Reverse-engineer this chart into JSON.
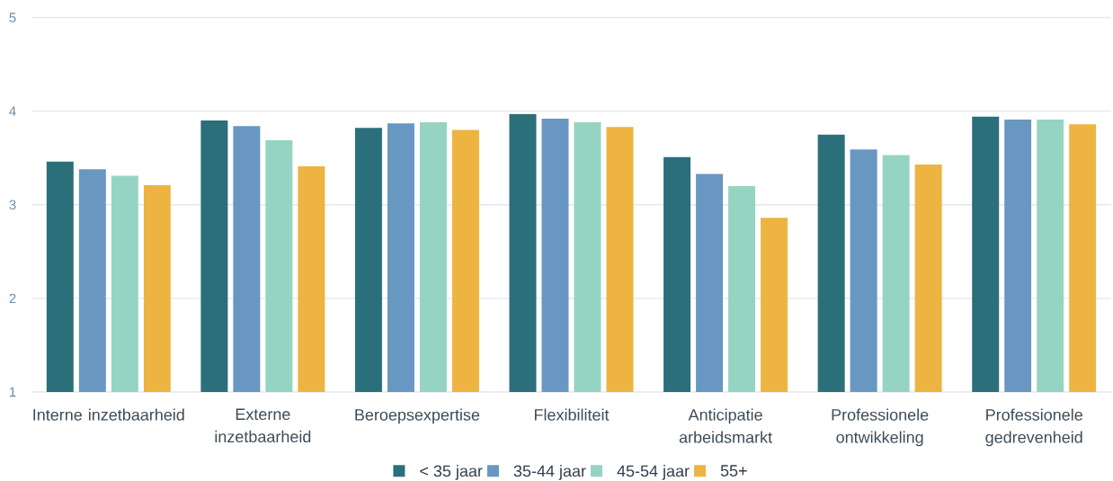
{
  "chart_data": {
    "type": "bar",
    "categories": [
      "Interne inzetbaarheid",
      "Externe inzetbaarheid",
      "Beroepsexpertise",
      "Flexibiliteit",
      "Anticipatie arbeidsmarkt",
      "Professionele ontwikkeling",
      "Professionele gedrevenheid"
    ],
    "series": [
      {
        "name": "< 35 jaar",
        "color": "#2b6f7b",
        "values": [
          3.46,
          3.9,
          3.82,
          3.97,
          3.51,
          3.75,
          3.94
        ]
      },
      {
        "name": "35-44 jaar",
        "color": "#6897c2",
        "values": [
          3.38,
          3.84,
          3.87,
          3.92,
          3.33,
          3.59,
          3.91
        ]
      },
      {
        "name": "45-54 jaar",
        "color": "#95d4c2",
        "values": [
          3.31,
          3.69,
          3.88,
          3.88,
          3.2,
          3.53,
          3.91
        ]
      },
      {
        "name": "55+",
        "color": "#edb441",
        "values": [
          3.21,
          3.41,
          3.8,
          3.83,
          2.86,
          3.43,
          3.86
        ]
      }
    ],
    "ylim": [
      1,
      5
    ],
    "yticks": [
      1,
      2,
      3,
      4,
      5
    ],
    "grid": "y",
    "legend": "bottom"
  }
}
